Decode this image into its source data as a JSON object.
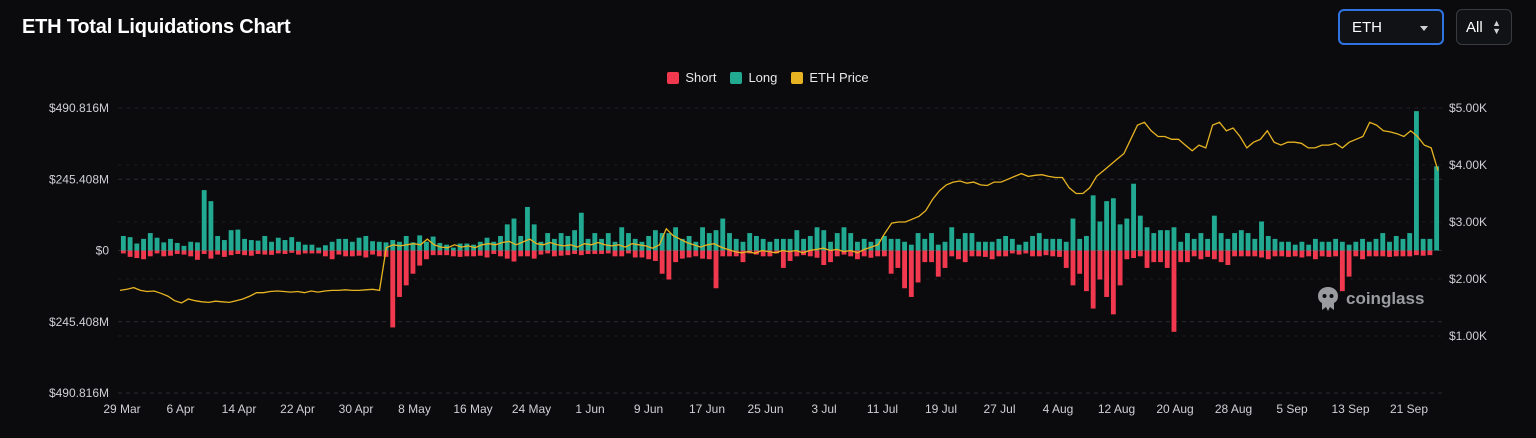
{
  "header": {
    "title": "ETH Total Liquidations Chart",
    "asset_select": {
      "value": "ETH"
    },
    "range_select": {
      "value": "All"
    }
  },
  "watermark": {
    "text": "coinglass",
    "icon": "coinglass-logo-icon"
  },
  "colors": {
    "short": "#f0384f",
    "long": "#22a991",
    "price": "#e7b322",
    "background": "#0b0b0d",
    "grid": "#2a2b30"
  },
  "chart_data": {
    "type": "bar",
    "legend": [
      "Short",
      "Long",
      "ETH Price"
    ],
    "legend_position": "top-center",
    "grid": true,
    "x_tick_labels": [
      "29 Mar",
      "6 Apr",
      "14 Apr",
      "22 Apr",
      "30 Apr",
      "8 May",
      "16 May",
      "24 May",
      "1 Jun",
      "9 Jun",
      "17 Jun",
      "25 Jun",
      "3 Jul",
      "11 Jul",
      "19 Jul",
      "27 Jul",
      "4 Aug",
      "12 Aug",
      "20 Aug",
      "28 Aug",
      "5 Sep",
      "13 Sep",
      "21 Sep"
    ],
    "y_left": {
      "tick_labels": [
        "$490.816M",
        "$245.408M",
        "$0",
        "$245.408M",
        "$490.816M"
      ],
      "tick_values": [
        490.816,
        245.408,
        0,
        -245.408,
        -490.816
      ],
      "range": [
        -490.816,
        490.816
      ],
      "unit": "$M"
    },
    "y_right": {
      "tick_labels": [
        "$5.00K",
        "$4.00K",
        "$3.00K",
        "$2.00K",
        "$1.00K"
      ],
      "tick_values": [
        5000,
        4000,
        3000,
        2000,
        1000
      ],
      "range": [
        0,
        5000
      ]
    },
    "series": [
      {
        "name": "Short",
        "type": "bar",
        "note": "daily short liquidations, $M, drawn downward",
        "values": [
          10,
          22,
          26,
          30,
          20,
          10,
          20,
          18,
          12,
          14,
          20,
          32,
          12,
          28,
          14,
          22,
          16,
          12,
          16,
          18,
          12,
          14,
          15,
          10,
          12,
          8,
          14,
          10,
          10,
          10,
          20,
          30,
          14,
          20,
          20,
          18,
          24,
          14,
          20,
          22,
          265,
          160,
          120,
          80,
          52,
          30,
          16,
          16,
          16,
          20,
          22,
          20,
          20,
          18,
          24,
          12,
          20,
          28,
          38,
          20,
          20,
          28,
          14,
          10,
          20,
          18,
          16,
          12,
          16,
          12,
          12,
          12,
          10,
          20,
          20,
          10,
          24,
          24,
          30,
          36,
          80,
          100,
          40,
          28,
          24,
          20,
          28,
          30,
          130,
          20,
          20,
          20,
          40,
          10,
          14,
          20,
          20,
          10,
          60,
          36,
          20,
          16,
          20,
          25,
          50,
          40,
          20,
          14,
          20,
          30,
          20,
          25,
          20,
          20,
          80,
          60,
          130,
          160,
          110,
          40,
          40,
          90,
          60,
          20,
          30,
          40,
          20,
          20,
          22,
          30,
          20,
          20,
          10,
          14,
          10,
          20,
          20,
          16,
          20,
          22,
          60,
          120,
          80,
          140,
          200,
          100,
          160,
          220,
          120,
          30,
          26,
          20,
          60,
          40,
          40,
          60,
          280,
          40,
          40,
          20,
          30,
          22,
          30,
          40,
          50,
          20,
          20,
          20,
          20,
          24,
          30,
          20,
          20,
          22,
          20,
          24,
          20,
          30,
          20,
          22,
          20,
          140,
          90,
          20,
          30,
          20,
          20,
          20,
          22,
          20,
          20,
          20,
          16,
          18,
          16
        ],
        "values_parity": "per-day"
      },
      {
        "name": "Long",
        "type": "bar",
        "note": "daily long liquidations, $M, drawn upward",
        "values": [
          50,
          46,
          24,
          40,
          60,
          44,
          28,
          40,
          26,
          16,
          30,
          28,
          208,
          170,
          50,
          36,
          70,
          72,
          40,
          36,
          34,
          50,
          30,
          44,
          36,
          46,
          30,
          20,
          20,
          10,
          18,
          30,
          40,
          40,
          30,
          44,
          50,
          32,
          30,
          28,
          36,
          30,
          50,
          28,
          52,
          30,
          48,
          26,
          20,
          10,
          24,
          24,
          20,
          30,
          44,
          30,
          50,
          90,
          110,
          50,
          150,
          90,
          30,
          60,
          40,
          60,
          50,
          70,
          130,
          40,
          60,
          40,
          60,
          30,
          80,
          60,
          40,
          30,
          50,
          70,
          60,
          60,
          80,
          40,
          50,
          30,
          80,
          60,
          70,
          110,
          60,
          40,
          30,
          60,
          50,
          40,
          30,
          40,
          40,
          40,
          70,
          40,
          50,
          80,
          70,
          30,
          60,
          80,
          60,
          30,
          40,
          30,
          40,
          50,
          40,
          40,
          30,
          20,
          60,
          40,
          60,
          20,
          30,
          80,
          40,
          60,
          60,
          30,
          30,
          30,
          40,
          50,
          40,
          20,
          30,
          50,
          60,
          40,
          40,
          40,
          30,
          110,
          40,
          50,
          190,
          100,
          170,
          180,
          90,
          110,
          230,
          120,
          80,
          60,
          70,
          70,
          80,
          30,
          60,
          40,
          60,
          40,
          120,
          60,
          40,
          60,
          70,
          60,
          40,
          100,
          50,
          40,
          30,
          30,
          20,
          30,
          20,
          40,
          30,
          30,
          40,
          30,
          20,
          30,
          40,
          30,
          40,
          60,
          30,
          50,
          40,
          60,
          480,
          40,
          40,
          290
        ],
        "values_parity": "per-day"
      },
      {
        "name": "ETH Price",
        "type": "line",
        "axis": "right",
        "unit": "USD",
        "values": [
          1800,
          1820,
          1850,
          1800,
          1780,
          1790,
          1750,
          1700,
          1620,
          1580,
          1650,
          1620,
          1600,
          1590,
          1610,
          1600,
          1590,
          1620,
          1650,
          1700,
          1760,
          1760,
          1780,
          1790,
          1780,
          1770,
          1780,
          1760,
          1790,
          1770,
          1790,
          1800,
          1800,
          1810,
          1800,
          1800,
          1810,
          1820,
          1800,
          2550,
          2600,
          2580,
          2600,
          2620,
          2600,
          2700,
          2600,
          2560,
          2550,
          2600,
          2560,
          2580,
          2550,
          2600,
          2620,
          2600,
          2640,
          2660,
          2600,
          2650,
          2700,
          2620,
          2600,
          2640,
          2600,
          2580,
          2600,
          2560,
          2620,
          2600,
          2640,
          2600,
          2580,
          2600,
          2560,
          2620,
          2600,
          2580,
          2540,
          2600,
          2880,
          2760,
          2700,
          2640,
          2600,
          2560,
          2600,
          2620,
          2560,
          2520,
          2480,
          2460,
          2480,
          2450,
          2500,
          2480,
          2460,
          2500,
          2480,
          2500,
          2460,
          2500,
          2520,
          2540,
          2500,
          2520,
          2480,
          2500,
          2460,
          2520,
          2560,
          2600,
          2800,
          2980,
          3000,
          3000,
          3050,
          3100,
          3200,
          3400,
          3550,
          3650,
          3700,
          3720,
          3680,
          3700,
          3650,
          3640,
          3700,
          3700,
          3750,
          3800,
          3850,
          3800,
          3820,
          3830,
          3800,
          3780,
          3780,
          3600,
          3500,
          3500,
          3600,
          3800,
          3900,
          4000,
          4100,
          4200,
          4450,
          4700,
          4750,
          4600,
          4500,
          4500,
          4450,
          4450,
          4350,
          4250,
          4350,
          4300,
          4700,
          4750,
          4600,
          4650,
          4500,
          4300,
          4400,
          4450,
          4600,
          4400,
          4350,
          4400,
          4400,
          4380,
          4300,
          4300,
          4350,
          4350,
          4380,
          4300,
          4400,
          4450,
          4500,
          4750,
          4700,
          4600,
          4580,
          4550,
          4500,
          4600,
          4500,
          4350,
          4300,
          3900
        ]
      }
    ]
  }
}
